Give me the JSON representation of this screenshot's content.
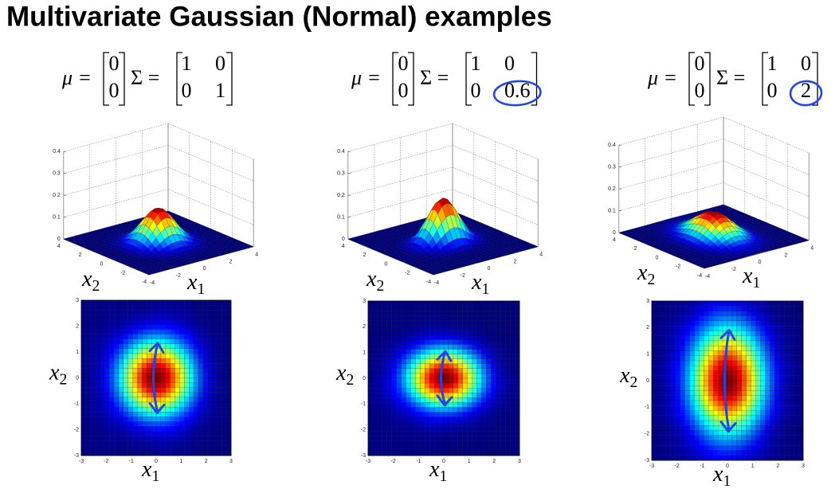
{
  "title": "Multivariate Gaussian (Normal) examples",
  "panels": [
    {
      "mu_label": "μ =",
      "mu": [
        0,
        0
      ],
      "sigma_label": "Σ =",
      "sigma": [
        [
          1,
          0
        ],
        [
          0,
          1
        ]
      ]
    },
    {
      "mu_label": "μ =",
      "mu": [
        0,
        0
      ],
      "sigma_label": "Σ =",
      "sigma": [
        [
          1,
          0
        ],
        [
          0,
          0.6
        ]
      ]
    },
    {
      "mu_label": "μ =",
      "mu": [
        0,
        0
      ],
      "sigma_label": "Σ =",
      "sigma": [
        [
          1,
          0
        ],
        [
          0,
          2
        ]
      ]
    }
  ],
  "surface_axes": {
    "xlim": [
      -4,
      4
    ],
    "zlim": [
      0,
      0.4
    ],
    "zticks": [
      0,
      0.1,
      0.2,
      0.3,
      0.4
    ],
    "x1ticks": [
      -4,
      -2,
      0,
      2,
      4
    ],
    "x2ticks": [
      -4,
      -2,
      0,
      2,
      4
    ],
    "x1_label": {
      "base": "x",
      "sub": "1"
    },
    "x2_label": {
      "base": "x",
      "sub": "2"
    }
  },
  "heatmap_axes": {
    "xlim": [
      -3,
      3
    ],
    "ylim": [
      -3,
      3
    ],
    "xticks": [
      -3,
      -2,
      -1,
      0,
      1,
      2,
      3
    ],
    "yticks": [
      -3,
      -2,
      -1,
      0,
      1,
      2,
      3
    ],
    "x1_label": {
      "base": "x",
      "sub": "1"
    },
    "x2_label": {
      "base": "x",
      "sub": "2"
    }
  }
}
